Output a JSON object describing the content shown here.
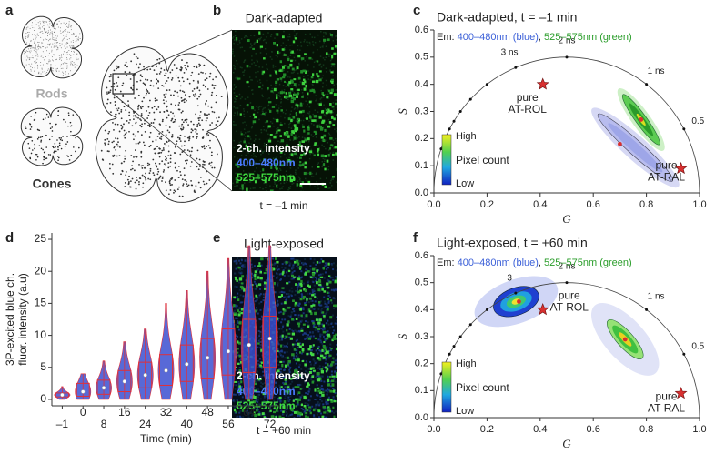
{
  "panel_labels": [
    "a",
    "b",
    "c",
    "d",
    "e",
    "f"
  ],
  "panel_a": {
    "rods": "Rods",
    "cones": "Cones"
  },
  "panel_b": {
    "title": "Dark-adapted",
    "legend": [
      "2-ch. intensity",
      "400–480nm",
      "525–575nm"
    ],
    "time": "t = –1 min"
  },
  "panel_e": {
    "title": "Light-exposed",
    "legend": [
      "2-ch. intensity",
      "400–480nm",
      "525–575nm"
    ],
    "time": "t = +60 min"
  },
  "chart_data": [
    {
      "type": "phasor",
      "title": "Dark-adapted, t = –1 min",
      "subtitle_parts": [
        {
          "text": "Em: ",
          "color": "#222222"
        },
        {
          "text": "400–480nm (blue)",
          "color": "#3a5fd8"
        },
        {
          "text": ", ",
          "color": "#222222"
        },
        {
          "text": "525–575nm (green)",
          "color": "#2a9d2a"
        }
      ],
      "xlabel": "G",
      "ylabel": "S",
      "xlim": [
        0,
        1
      ],
      "ylim": [
        0,
        0.6
      ],
      "xticks": [
        {
          "value": 0,
          "label": "0.0"
        },
        0.2,
        0.4,
        0.6,
        0.8,
        {
          "value": 1,
          "label": "1.0"
        }
      ],
      "yticks": [
        {
          "value": 0,
          "label": "0.0"
        },
        0.1,
        0.2,
        0.3,
        0.4,
        0.5,
        0.6
      ],
      "lifetime_ticks": [
        {
          "value": 3,
          "label": "3 ns"
        },
        {
          "value": 2,
          "label": "2 ns"
        },
        {
          "value": 1,
          "label": "1 ns"
        },
        0.5
      ],
      "lifetime_minor": [
        4,
        5,
        6,
        7,
        8,
        10,
        12
      ],
      "series": [
        {
          "color": "#3a5fd8",
          "x": [
            0.7
          ],
          "y": [
            0.18
          ]
        },
        {
          "color": "#2ca02c",
          "x": [
            0.78
          ],
          "y": [
            0.27
          ]
        }
      ],
      "references": [
        {
          "label": [
            "pure",
            "AT-ROL"
          ],
          "x": 0.41,
          "y": 0.4
        },
        {
          "label": [
            "pure",
            "AT-RAL"
          ],
          "x": 0.93,
          "y": 0.09
        }
      ],
      "colorbar_labels": [
        "High",
        "Pixel count",
        "Low"
      ]
    },
    {
      "type": "box",
      "categories": [
        "–1",
        "0",
        "8",
        "16",
        "24",
        "32",
        "40",
        "48",
        "56",
        "64",
        "72"
      ],
      "xlabel": "Time (min)",
      "ylabel": [
        "3P-excited blue ch.",
        "fluor. intensity (a.u)"
      ],
      "ylim": [
        -1,
        26
      ],
      "yticks": [
        0,
        5,
        10,
        15,
        20,
        25
      ],
      "min": [
        0,
        0,
        0,
        0,
        0,
        0,
        0,
        0,
        0,
        0,
        0
      ],
      "q1": [
        0.4,
        0.5,
        0.8,
        1.2,
        1.8,
        2.2,
        2.8,
        3.2,
        3.8,
        4.2,
        5
      ],
      "median": [
        0.7,
        1.2,
        1.8,
        2.8,
        3.8,
        4.5,
        5.5,
        6.5,
        7.5,
        8.5,
        9.5
      ],
      "q3": [
        1.0,
        2.5,
        3,
        4.5,
        5.8,
        7,
        8.5,
        9.5,
        11,
        12.5,
        13
      ],
      "max": [
        2,
        4,
        6,
        9,
        11,
        15,
        17,
        20,
        22,
        24,
        24
      ],
      "box_color": "#e0303a",
      "violin_color": "#3b4fd0"
    },
    {
      "type": "phasor",
      "title": "Light-exposed, t = +60 min",
      "subtitle_parts": [
        {
          "text": "Em: ",
          "color": "#222222"
        },
        {
          "text": "400–480nm (blue)",
          "color": "#3a5fd8"
        },
        {
          "text": ", ",
          "color": "#222222"
        },
        {
          "text": "525–575nm (green)",
          "color": "#2a9d2a"
        }
      ],
      "xlabel": "G",
      "ylabel": "S",
      "xlim": [
        0,
        1
      ],
      "ylim": [
        0,
        0.6
      ],
      "xticks": [
        {
          "value": 0,
          "label": "0.0"
        },
        0.2,
        0.4,
        0.6,
        0.8,
        {
          "value": 1,
          "label": "1.0"
        }
      ],
      "yticks": [
        {
          "value": 0,
          "label": "0.0"
        },
        0.1,
        0.2,
        0.3,
        0.4,
        0.5,
        0.6
      ],
      "lifetime_ticks": [
        {
          "value": 3,
          "label": "3"
        },
        {
          "value": 2,
          "label": "2 ns"
        },
        {
          "value": 1,
          "label": "1 ns"
        },
        0.5
      ],
      "lifetime_minor": [
        4,
        5,
        6,
        7,
        8,
        10,
        12
      ],
      "series": [
        {
          "color": "#3a5fd8",
          "x": [
            0.32
          ],
          "y": [
            0.43
          ]
        },
        {
          "color": "#2ca02c",
          "x": [
            0.72
          ],
          "y": [
            0.29
          ]
        }
      ],
      "references": [
        {
          "label": [
            "pure",
            "AT-ROL"
          ],
          "x": 0.41,
          "y": 0.4
        },
        {
          "label": [
            "pure",
            "AT-RAL"
          ],
          "x": 0.93,
          "y": 0.09
        }
      ],
      "colorbar_labels": [
        "High",
        "Pixel count",
        "Low"
      ]
    }
  ]
}
